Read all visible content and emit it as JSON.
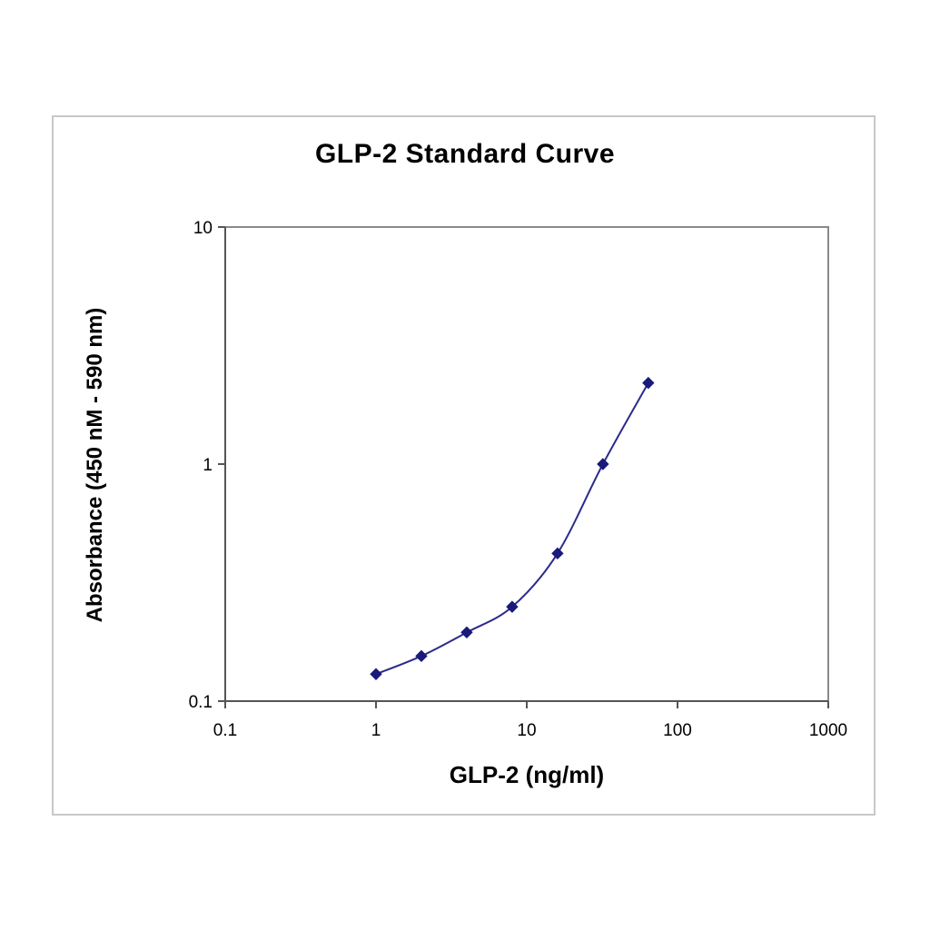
{
  "chart_data": {
    "type": "line",
    "title": "GLP-2 Standard Curve",
    "xlabel": "GLP-2 (ng/ml)",
    "ylabel": "Absorbance (450 nM - 590 nm)",
    "x_scale": "log",
    "y_scale": "log",
    "xlim": [
      0.1,
      1000
    ],
    "ylim": [
      0.1,
      10
    ],
    "x_ticks": [
      "0.1",
      "1",
      "10",
      "100",
      "1000"
    ],
    "y_ticks": [
      "0.1",
      "1",
      "10"
    ],
    "grid": false,
    "legend": "none",
    "series": [
      {
        "x": [
          1,
          2,
          4,
          8,
          16,
          32,
          64
        ],
        "y": [
          0.13,
          0.155,
          0.195,
          0.25,
          0.42,
          1.0,
          2.2
        ],
        "color": "#2b2b8c",
        "marker": "diamond"
      }
    ]
  }
}
